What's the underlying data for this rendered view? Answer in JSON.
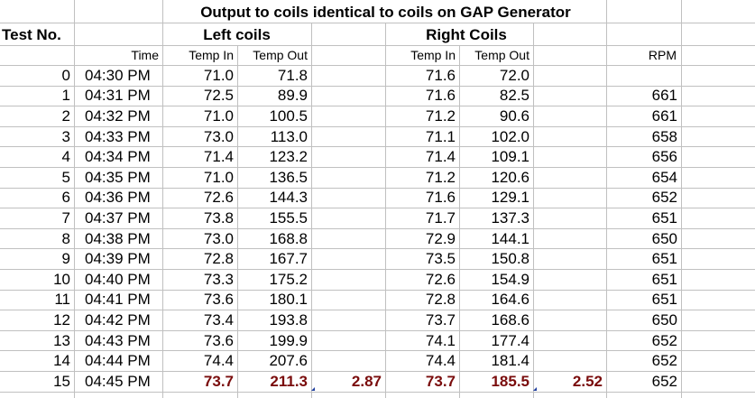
{
  "title": "Output to coils identical to coils on GAP Generator",
  "header": {
    "test_no": "Test No.",
    "left_coils": "Left coils",
    "right_coils": "Right Coils",
    "time": "Time",
    "temp_in": "Temp In",
    "temp_out": "Temp Out",
    "rpm": "RPM"
  },
  "rows": [
    {
      "test": "0",
      "time": "04:30 PM",
      "l_in": "71.0",
      "l_out": "71.8",
      "l_diff": "",
      "r_in": "71.6",
      "r_out": "72.0",
      "r_diff": "",
      "rpm": ""
    },
    {
      "test": "1",
      "time": "04:31 PM",
      "l_in": "72.5",
      "l_out": "89.9",
      "l_diff": "",
      "r_in": "71.6",
      "r_out": "82.5",
      "r_diff": "",
      "rpm": "661"
    },
    {
      "test": "2",
      "time": "04:32 PM",
      "l_in": "71.0",
      "l_out": "100.5",
      "l_diff": "",
      "r_in": "71.2",
      "r_out": "90.6",
      "r_diff": "",
      "rpm": "661"
    },
    {
      "test": "3",
      "time": "04:33 PM",
      "l_in": "73.0",
      "l_out": "113.0",
      "l_diff": "",
      "r_in": "71.1",
      "r_out": "102.0",
      "r_diff": "",
      "rpm": "658"
    },
    {
      "test": "4",
      "time": "04:34 PM",
      "l_in": "71.4",
      "l_out": "123.2",
      "l_diff": "",
      "r_in": "71.4",
      "r_out": "109.1",
      "r_diff": "",
      "rpm": "656"
    },
    {
      "test": "5",
      "time": "04:35 PM",
      "l_in": "71.0",
      "l_out": "136.5",
      "l_diff": "",
      "r_in": "71.2",
      "r_out": "120.6",
      "r_diff": "",
      "rpm": "654"
    },
    {
      "test": "6",
      "time": "04:36 PM",
      "l_in": "72.6",
      "l_out": "144.3",
      "l_diff": "",
      "r_in": "71.6",
      "r_out": "129.1",
      "r_diff": "",
      "rpm": "652"
    },
    {
      "test": "7",
      "time": "04:37 PM",
      "l_in": "73.8",
      "l_out": "155.5",
      "l_diff": "",
      "r_in": "71.7",
      "r_out": "137.3",
      "r_diff": "",
      "rpm": "651"
    },
    {
      "test": "8",
      "time": "04:38 PM",
      "l_in": "73.0",
      "l_out": "168.8",
      "l_diff": "",
      "r_in": "72.9",
      "r_out": "144.1",
      "r_diff": "",
      "rpm": "650"
    },
    {
      "test": "9",
      "time": "04:39 PM",
      "l_in": "72.8",
      "l_out": "167.7",
      "l_diff": "",
      "r_in": "73.5",
      "r_out": "150.8",
      "r_diff": "",
      "rpm": "651"
    },
    {
      "test": "10",
      "time": "04:40 PM",
      "l_in": "73.3",
      "l_out": "175.2",
      "l_diff": "",
      "r_in": "72.6",
      "r_out": "154.9",
      "r_diff": "",
      "rpm": "651"
    },
    {
      "test": "11",
      "time": "04:41 PM",
      "l_in": "73.6",
      "l_out": "180.1",
      "l_diff": "",
      "r_in": "72.8",
      "r_out": "164.6",
      "r_diff": "",
      "rpm": "651"
    },
    {
      "test": "12",
      "time": "04:42 PM",
      "l_in": "73.4",
      "l_out": "193.8",
      "l_diff": "",
      "r_in": "73.7",
      "r_out": "168.6",
      "r_diff": "",
      "rpm": "650"
    },
    {
      "test": "13",
      "time": "04:43 PM",
      "l_in": "73.6",
      "l_out": "199.9",
      "l_diff": "",
      "r_in": "74.1",
      "r_out": "177.4",
      "r_diff": "",
      "rpm": "652"
    },
    {
      "test": "14",
      "time": "04:44 PM",
      "l_in": "74.4",
      "l_out": "207.6",
      "l_diff": "",
      "r_in": "74.4",
      "r_out": "181.4",
      "r_diff": "",
      "rpm": "652"
    },
    {
      "test": "15",
      "time": "04:45 PM",
      "l_in": "73.7",
      "l_out": "211.3",
      "l_diff": "2.87",
      "r_in": "73.7",
      "r_out": "185.5",
      "r_diff": "2.52",
      "rpm": "652"
    }
  ],
  "colors": {
    "gridline": "#c0c0c0",
    "highlight": "#7a0c0c",
    "comment_marker": "#1f3f9f"
  }
}
